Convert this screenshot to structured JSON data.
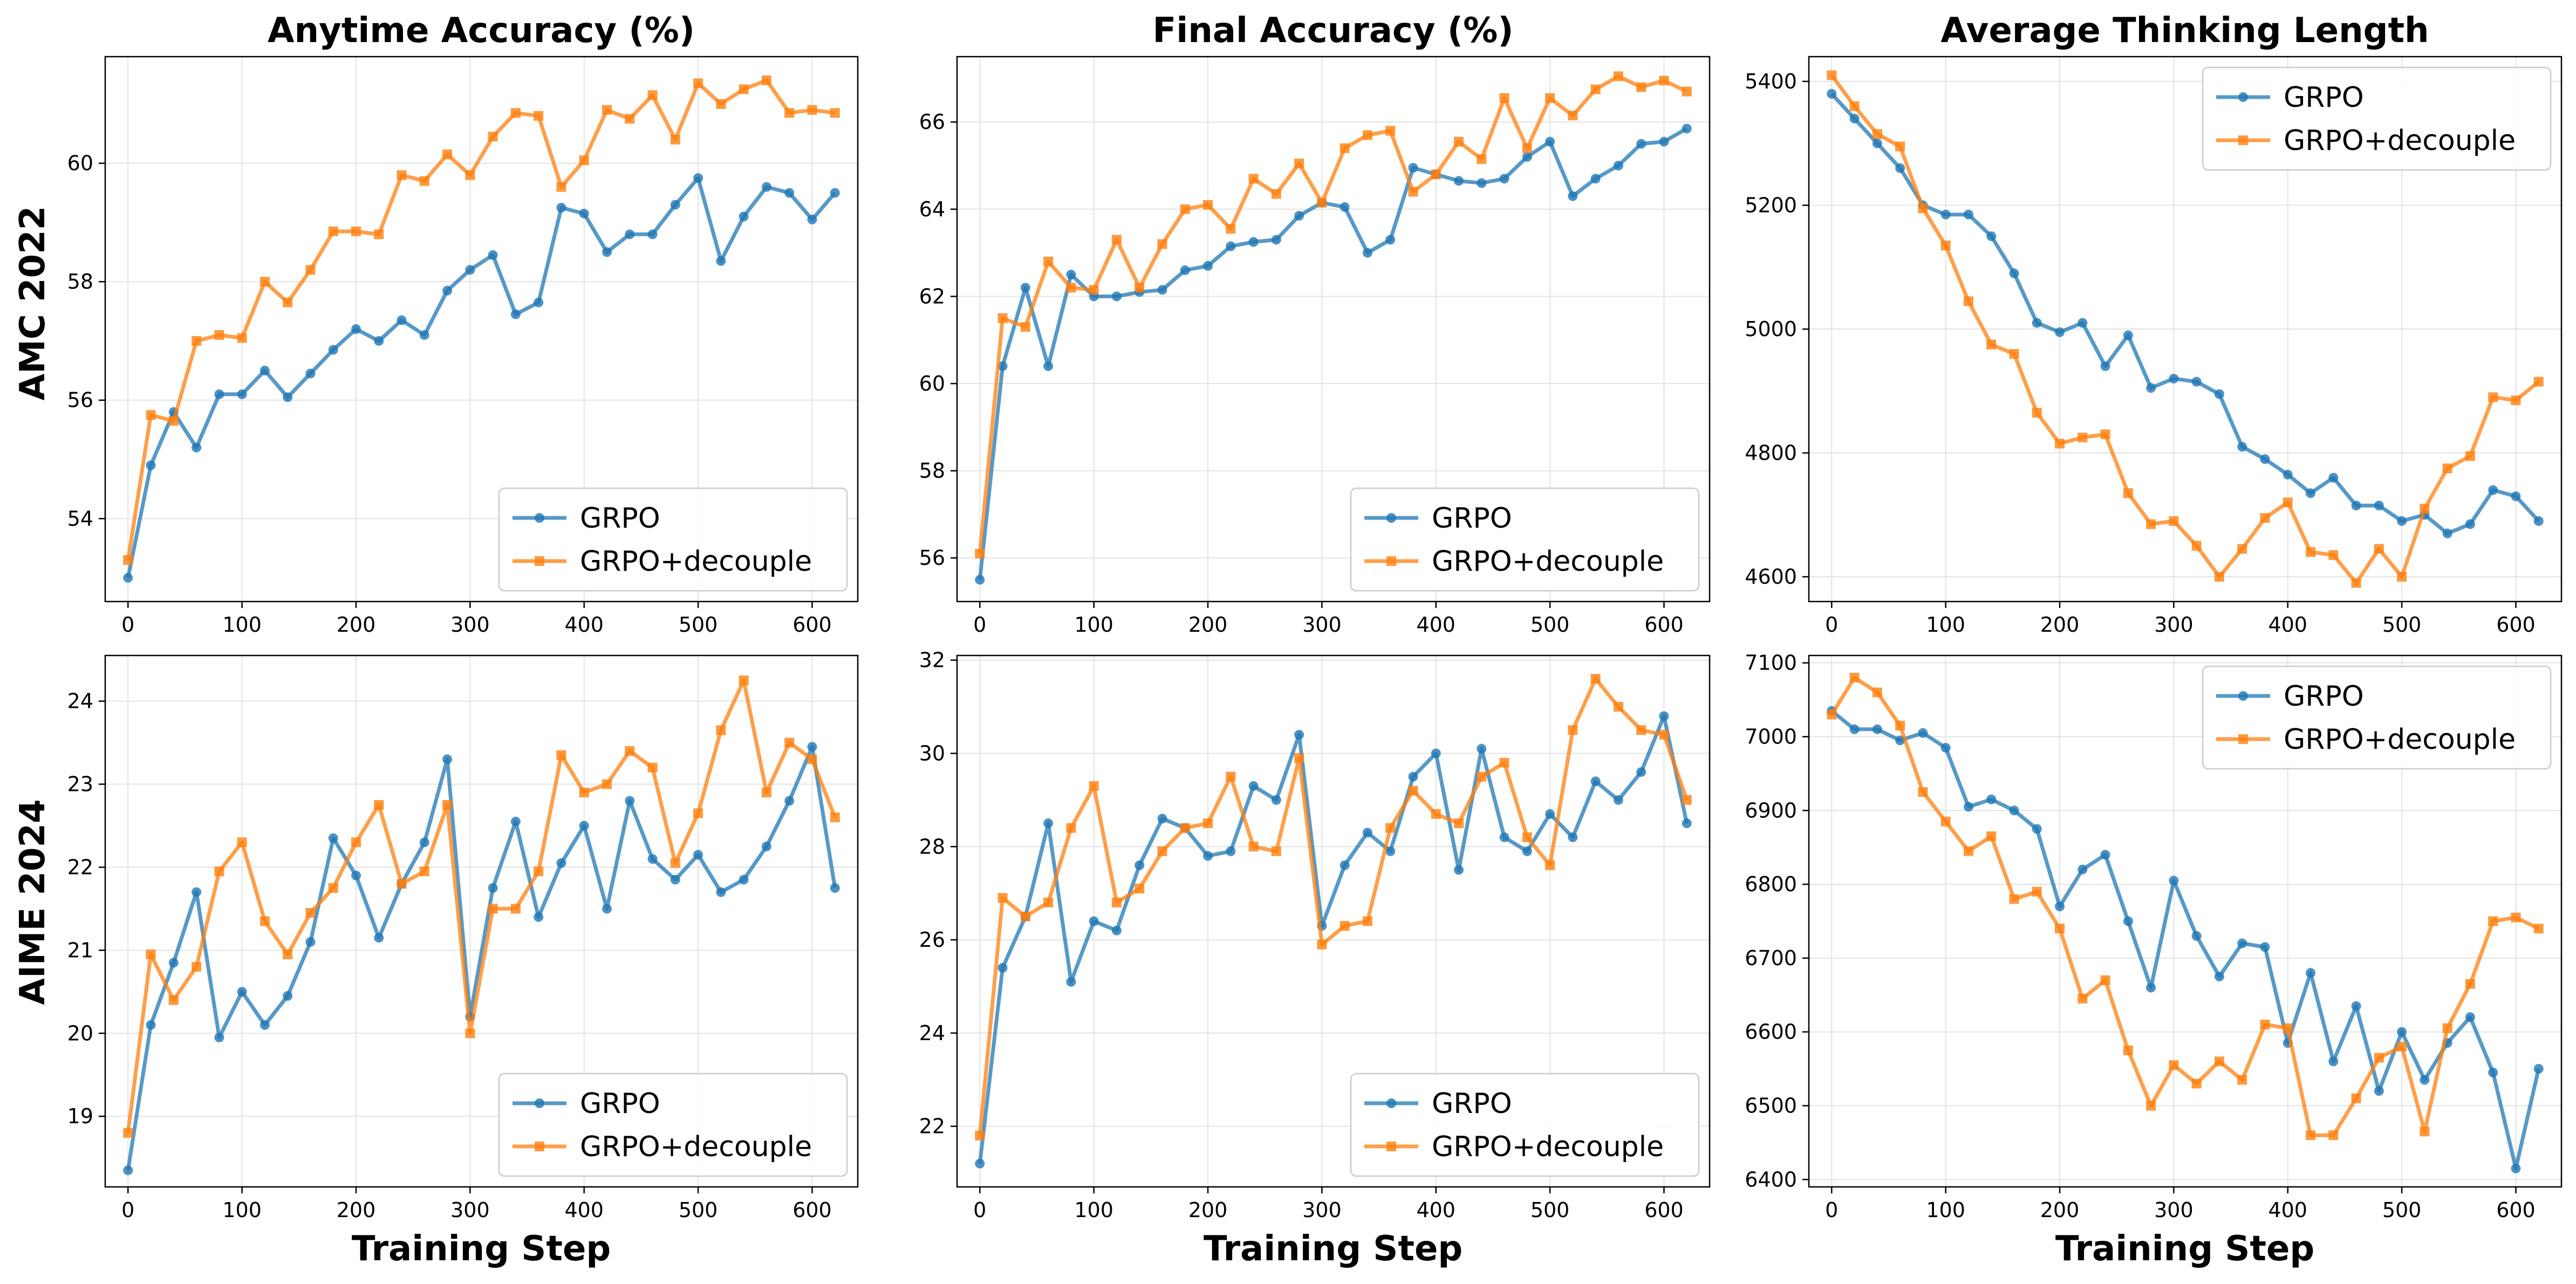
{
  "figure": {
    "column_titles": [
      "Anytime Accuracy (%)",
      "Final Accuracy (%)",
      "Average Thinking Length"
    ],
    "row_labels": [
      "AMC 2022",
      "AIME 2024"
    ],
    "xlabel": "Training Step",
    "series_styles": [
      {
        "name": "GRPO",
        "color": "#1f77b4",
        "marker": "circle"
      },
      {
        "name": "GRPO+decouple",
        "color": "#ff7f0e",
        "marker": "square"
      }
    ]
  },
  "chart_data": [
    {
      "type": "line",
      "title": "Anytime Accuracy (%)",
      "row": "AMC 2022",
      "xlabel": "",
      "ylabel": "",
      "xlim": [
        -20,
        640
      ],
      "ylim": [
        52.6,
        61.8
      ],
      "xticks": [
        0,
        100,
        200,
        300,
        400,
        500,
        600
      ],
      "yticks": [
        54,
        56,
        58,
        60
      ],
      "grid": true,
      "legend_position": "lower-right",
      "x": [
        0,
        20,
        40,
        60,
        80,
        100,
        120,
        140,
        160,
        180,
        200,
        220,
        240,
        260,
        280,
        300,
        320,
        340,
        360,
        380,
        400,
        420,
        440,
        460,
        480,
        500,
        520,
        540,
        560,
        580,
        600,
        620
      ],
      "series": [
        {
          "name": "GRPO",
          "values": [
            53.0,
            54.9,
            55.8,
            55.2,
            56.1,
            56.1,
            56.5,
            56.05,
            56.45,
            56.85,
            57.2,
            57.0,
            57.35,
            57.1,
            57.85,
            58.2,
            58.45,
            57.45,
            57.65,
            59.25,
            59.15,
            58.5,
            58.8,
            58.8,
            59.3,
            59.75,
            58.35,
            59.1,
            59.6,
            59.5,
            59.05,
            59.5
          ]
        },
        {
          "name": "GRPO+decouple",
          "values": [
            53.3,
            55.75,
            55.65,
            57.0,
            57.1,
            57.05,
            58.0,
            57.65,
            58.2,
            58.85,
            58.85,
            58.8,
            59.8,
            59.7,
            60.15,
            59.8,
            60.45,
            60.85,
            60.8,
            59.6,
            60.05,
            60.9,
            60.75,
            61.15,
            60.4,
            61.35,
            61.0,
            61.25,
            61.4,
            60.85,
            60.9,
            60.85
          ]
        }
      ]
    },
    {
      "type": "line",
      "title": "Final Accuracy (%)",
      "row": "AMC 2022",
      "xlabel": "",
      "ylabel": "",
      "xlim": [
        -20,
        640
      ],
      "ylim": [
        55.0,
        67.5
      ],
      "xticks": [
        0,
        100,
        200,
        300,
        400,
        500,
        600
      ],
      "yticks": [
        56,
        58,
        60,
        62,
        64,
        66
      ],
      "grid": true,
      "legend_position": "lower-right",
      "x": [
        0,
        20,
        40,
        60,
        80,
        100,
        120,
        140,
        160,
        180,
        200,
        220,
        240,
        260,
        280,
        300,
        320,
        340,
        360,
        380,
        400,
        420,
        440,
        460,
        480,
        500,
        520,
        540,
        560,
        580,
        600,
        620
      ],
      "series": [
        {
          "name": "GRPO",
          "values": [
            55.5,
            60.4,
            62.2,
            60.4,
            62.5,
            62.0,
            62.0,
            62.1,
            62.15,
            62.6,
            62.7,
            63.15,
            63.25,
            63.3,
            63.85,
            64.15,
            64.05,
            63.0,
            63.3,
            64.95,
            64.8,
            64.65,
            64.6,
            64.7,
            65.2,
            65.55,
            64.3,
            64.7,
            65.0,
            65.5,
            65.55,
            65.85
          ]
        },
        {
          "name": "GRPO+decouple",
          "values": [
            56.1,
            61.5,
            61.3,
            62.8,
            62.2,
            62.15,
            63.3,
            62.2,
            63.2,
            64.0,
            64.1,
            63.55,
            64.7,
            64.35,
            65.05,
            64.15,
            65.4,
            65.7,
            65.8,
            64.4,
            64.8,
            65.55,
            65.15,
            66.55,
            65.4,
            66.55,
            66.15,
            66.75,
            67.05,
            66.8,
            66.95,
            66.7
          ]
        }
      ]
    },
    {
      "type": "line",
      "title": "Average Thinking Length",
      "row": "AMC 2022",
      "xlabel": "",
      "ylabel": "",
      "xlim": [
        -20,
        640
      ],
      "ylim": [
        4560,
        5440
      ],
      "xticks": [
        0,
        100,
        200,
        300,
        400,
        500,
        600
      ],
      "yticks": [
        4600,
        4800,
        5000,
        5200,
        5400
      ],
      "grid": true,
      "legend_position": "upper-right",
      "x": [
        0,
        20,
        40,
        60,
        80,
        100,
        120,
        140,
        160,
        180,
        200,
        220,
        240,
        260,
        280,
        300,
        320,
        340,
        360,
        380,
        400,
        420,
        440,
        460,
        480,
        500,
        520,
        540,
        560,
        580,
        600,
        620
      ],
      "series": [
        {
          "name": "GRPO",
          "values": [
            5380,
            5340,
            5300,
            5260,
            5200,
            5185,
            5185,
            5150,
            5090,
            5010,
            4995,
            5010,
            4940,
            4990,
            4905,
            4920,
            4915,
            4895,
            4810,
            4790,
            4765,
            4735,
            4760,
            4715,
            4715,
            4690,
            4700,
            4670,
            4685,
            4740,
            4730,
            4690
          ]
        },
        {
          "name": "GRPO+decouple",
          "values": [
            5410,
            5360,
            5315,
            5295,
            5195,
            5135,
            5045,
            4975,
            4960,
            4865,
            4815,
            4825,
            4830,
            4735,
            4685,
            4690,
            4650,
            4600,
            4645,
            4695,
            4720,
            4640,
            4635,
            4590,
            4645,
            4600,
            4710,
            4775,
            4795,
            4890,
            4885,
            4915
          ]
        }
      ]
    },
    {
      "type": "line",
      "title": "",
      "row": "AIME 2024",
      "xlabel": "Training Step",
      "ylabel": "",
      "xlim": [
        -20,
        640
      ],
      "ylim": [
        18.15,
        24.55
      ],
      "xticks": [
        0,
        100,
        200,
        300,
        400,
        500,
        600
      ],
      "yticks": [
        19,
        20,
        21,
        22,
        23,
        24
      ],
      "grid": true,
      "legend_position": "lower-right",
      "x": [
        0,
        20,
        40,
        60,
        80,
        100,
        120,
        140,
        160,
        180,
        200,
        220,
        240,
        260,
        280,
        300,
        320,
        340,
        360,
        380,
        400,
        420,
        440,
        460,
        480,
        500,
        520,
        540,
        560,
        580,
        600,
        620
      ],
      "series": [
        {
          "name": "GRPO",
          "values": [
            18.35,
            20.1,
            20.85,
            21.7,
            19.95,
            20.5,
            20.1,
            20.45,
            21.1,
            22.35,
            21.9,
            21.15,
            21.8,
            22.3,
            23.3,
            20.2,
            21.75,
            22.55,
            21.4,
            22.05,
            22.5,
            21.5,
            22.8,
            22.1,
            21.85,
            22.15,
            21.7,
            21.85,
            22.25,
            22.8,
            23.45,
            21.75
          ]
        },
        {
          "name": "GRPO+decouple",
          "values": [
            18.8,
            20.95,
            20.4,
            20.8,
            21.95,
            22.3,
            21.35,
            20.95,
            21.45,
            21.75,
            22.3,
            22.75,
            21.8,
            21.95,
            22.75,
            20.0,
            21.5,
            21.5,
            21.95,
            23.35,
            22.9,
            23.0,
            23.4,
            23.2,
            22.05,
            22.65,
            23.65,
            24.25,
            22.9,
            23.5,
            23.3,
            22.6
          ]
        }
      ]
    },
    {
      "type": "line",
      "title": "",
      "row": "AIME 2024",
      "xlabel": "Training Step",
      "ylabel": "",
      "xlim": [
        -20,
        640
      ],
      "ylim": [
        20.7,
        32.1
      ],
      "xticks": [
        0,
        100,
        200,
        300,
        400,
        500,
        600
      ],
      "yticks": [
        22,
        24,
        26,
        28,
        30,
        32
      ],
      "grid": true,
      "legend_position": "lower-right",
      "x": [
        0,
        20,
        40,
        60,
        80,
        100,
        120,
        140,
        160,
        180,
        200,
        220,
        240,
        260,
        280,
        300,
        320,
        340,
        360,
        380,
        400,
        420,
        440,
        460,
        480,
        500,
        520,
        540,
        560,
        580,
        600,
        620
      ],
      "series": [
        {
          "name": "GRPO",
          "values": [
            21.2,
            25.4,
            26.5,
            28.5,
            25.1,
            26.4,
            26.2,
            27.6,
            28.6,
            28.4,
            27.8,
            27.9,
            29.3,
            29.0,
            30.4,
            26.3,
            27.6,
            28.3,
            27.9,
            29.5,
            30.0,
            27.5,
            30.1,
            28.2,
            27.9,
            28.7,
            28.2,
            29.4,
            29.0,
            29.6,
            30.8,
            28.5
          ]
        },
        {
          "name": "GRPO+decouple",
          "values": [
            21.8,
            26.9,
            26.5,
            26.8,
            28.4,
            29.3,
            26.8,
            27.1,
            27.9,
            28.4,
            28.5,
            29.5,
            28.0,
            27.9,
            29.9,
            25.9,
            26.3,
            26.4,
            28.4,
            29.2,
            28.7,
            28.5,
            29.5,
            29.8,
            28.2,
            27.6,
            30.5,
            31.6,
            31.0,
            30.5,
            30.4,
            29.0
          ]
        }
      ]
    },
    {
      "type": "line",
      "title": "",
      "row": "AIME 2024",
      "xlabel": "Training Step",
      "ylabel": "",
      "xlim": [
        -20,
        640
      ],
      "ylim": [
        6390,
        7110
      ],
      "xticks": [
        0,
        100,
        200,
        300,
        400,
        500,
        600
      ],
      "yticks": [
        6400,
        6500,
        6600,
        6700,
        6800,
        6900,
        7000,
        7100
      ],
      "grid": true,
      "legend_position": "upper-right",
      "x": [
        0,
        20,
        40,
        60,
        80,
        100,
        120,
        140,
        160,
        180,
        200,
        220,
        240,
        260,
        280,
        300,
        320,
        340,
        360,
        380,
        400,
        420,
        440,
        460,
        480,
        500,
        520,
        540,
        560,
        580,
        600,
        620
      ],
      "series": [
        {
          "name": "GRPO",
          "values": [
            7035,
            7010,
            7010,
            6995,
            7005,
            6985,
            6905,
            6915,
            6900,
            6875,
            6770,
            6820,
            6840,
            6750,
            6660,
            6805,
            6730,
            6675,
            6720,
            6715,
            6585,
            6680,
            6560,
            6635,
            6520,
            6600,
            6535,
            6585,
            6620,
            6545,
            6415,
            6550
          ]
        },
        {
          "name": "GRPO+decouple",
          "values": [
            7030,
            7080,
            7060,
            7015,
            6925,
            6885,
            6845,
            6865,
            6780,
            6790,
            6740,
            6645,
            6670,
            6575,
            6500,
            6555,
            6530,
            6560,
            6535,
            6610,
            6605,
            6460,
            6460,
            6510,
            6565,
            6580,
            6465,
            6605,
            6665,
            6750,
            6755,
            6740
          ]
        }
      ]
    }
  ]
}
